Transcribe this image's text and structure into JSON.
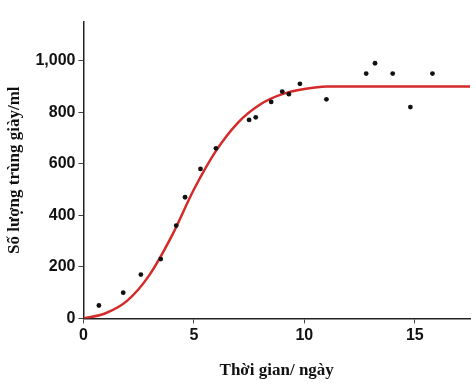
{
  "chart_data": {
    "type": "scatter",
    "x_label": "Thời gian/ ngày",
    "y_label": "Số lượng trùng giày/ml",
    "xlim": [
      0,
      17.5
    ],
    "xticks": [
      0,
      5,
      10,
      15
    ],
    "ylim": [
      0,
      1150
    ],
    "yticks": [
      0,
      200,
      400,
      600,
      800,
      {
        "value": 1000,
        "label": "1,000"
      }
    ],
    "grid": false,
    "series": [
      {
        "type": "scatter",
        "color": "#111111",
        "marker": "circle",
        "x": [
          0.7,
          1.8,
          2.6,
          3.5,
          4.2,
          4.6,
          5.3,
          6.0,
          7.5,
          7.8,
          8.5,
          9.0,
          9.3,
          9.8,
          11.0,
          12.8,
          13.2,
          14.0,
          14.8,
          15.8
        ],
        "values": [
          50,
          100,
          170,
          230,
          360,
          470,
          580,
          660,
          770,
          780,
          840,
          880,
          870,
          910,
          850,
          950,
          990,
          950,
          820,
          950
        ]
      },
      {
        "type": "line",
        "color": "#d42a2a",
        "line_style": "solid",
        "x": [
          0,
          1,
          2,
          3,
          4,
          5,
          6,
          7,
          8,
          9,
          10,
          11,
          12,
          13,
          14,
          15,
          16,
          17.5
        ],
        "values": [
          0,
          20,
          70,
          170,
          320,
          500,
          650,
          760,
          830,
          870,
          890,
          900,
          900,
          900,
          900,
          900,
          900,
          900
        ]
      }
    ]
  }
}
